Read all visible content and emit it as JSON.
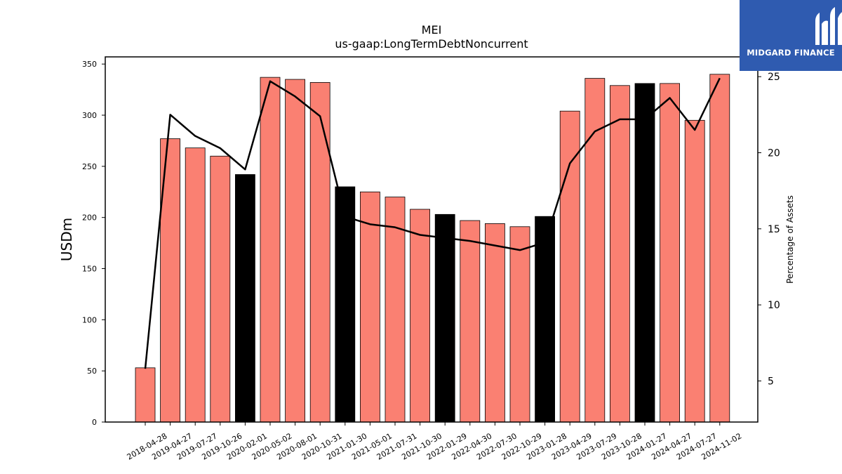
{
  "chart_data": {
    "type": "bar",
    "title": "MEI",
    "subtitle": "us-gaap:LongTermDebtNoncurrent",
    "ylabel": "USDm",
    "y2label": "Percentage of Assets",
    "ylim": [
      0,
      357
    ],
    "y2lim": [
      2.3,
      26.3
    ],
    "yticks": [
      0,
      50,
      100,
      150,
      200,
      250,
      300,
      350
    ],
    "y2ticks": [
      5,
      10,
      15,
      20,
      25
    ],
    "categories": [
      "2018-04-28",
      "2019-04-27",
      "2019-07-27",
      "2019-10-26",
      "2020-02-01",
      "2020-05-02",
      "2020-08-01",
      "2020-10-31",
      "2021-01-30",
      "2021-05-01",
      "2021-07-31",
      "2021-10-30",
      "2022-01-29",
      "2022-04-30",
      "2022-07-30",
      "2022-10-29",
      "2023-01-28",
      "2023-04-29",
      "2023-07-29",
      "2023-10-28",
      "2024-01-27",
      "2024-04-27",
      "2024-07-27",
      "2024-11-02"
    ],
    "series": [
      {
        "values": [
          53,
          277,
          268,
          260,
          242,
          337,
          335,
          332,
          230,
          225,
          220,
          208,
          203,
          197,
          194,
          191,
          201,
          304,
          336,
          329,
          331,
          331,
          295,
          340
        ],
        "highlight": [
          false,
          false,
          false,
          false,
          true,
          false,
          false,
          false,
          true,
          false,
          false,
          false,
          true,
          false,
          false,
          false,
          true,
          false,
          false,
          false,
          true,
          false,
          false,
          false
        ],
        "axis": "left"
      },
      {
        "values": [
          5.8,
          22.5,
          21.1,
          20.3,
          18.9,
          24.7,
          23.7,
          22.4,
          15.8,
          15.3,
          15.1,
          14.6,
          14.4,
          14.2,
          13.9,
          13.6,
          14.1,
          19.3,
          21.4,
          22.2,
          22.2,
          23.6,
          21.5,
          24.9
        ],
        "axis": "right"
      }
    ],
    "colors": {
      "bar": "#fa8072",
      "highlight_bar": "#000000",
      "line": "#000000"
    }
  },
  "logo": {
    "text": "MIDGARD FINANCE",
    "color": "#2f5bb0"
  }
}
